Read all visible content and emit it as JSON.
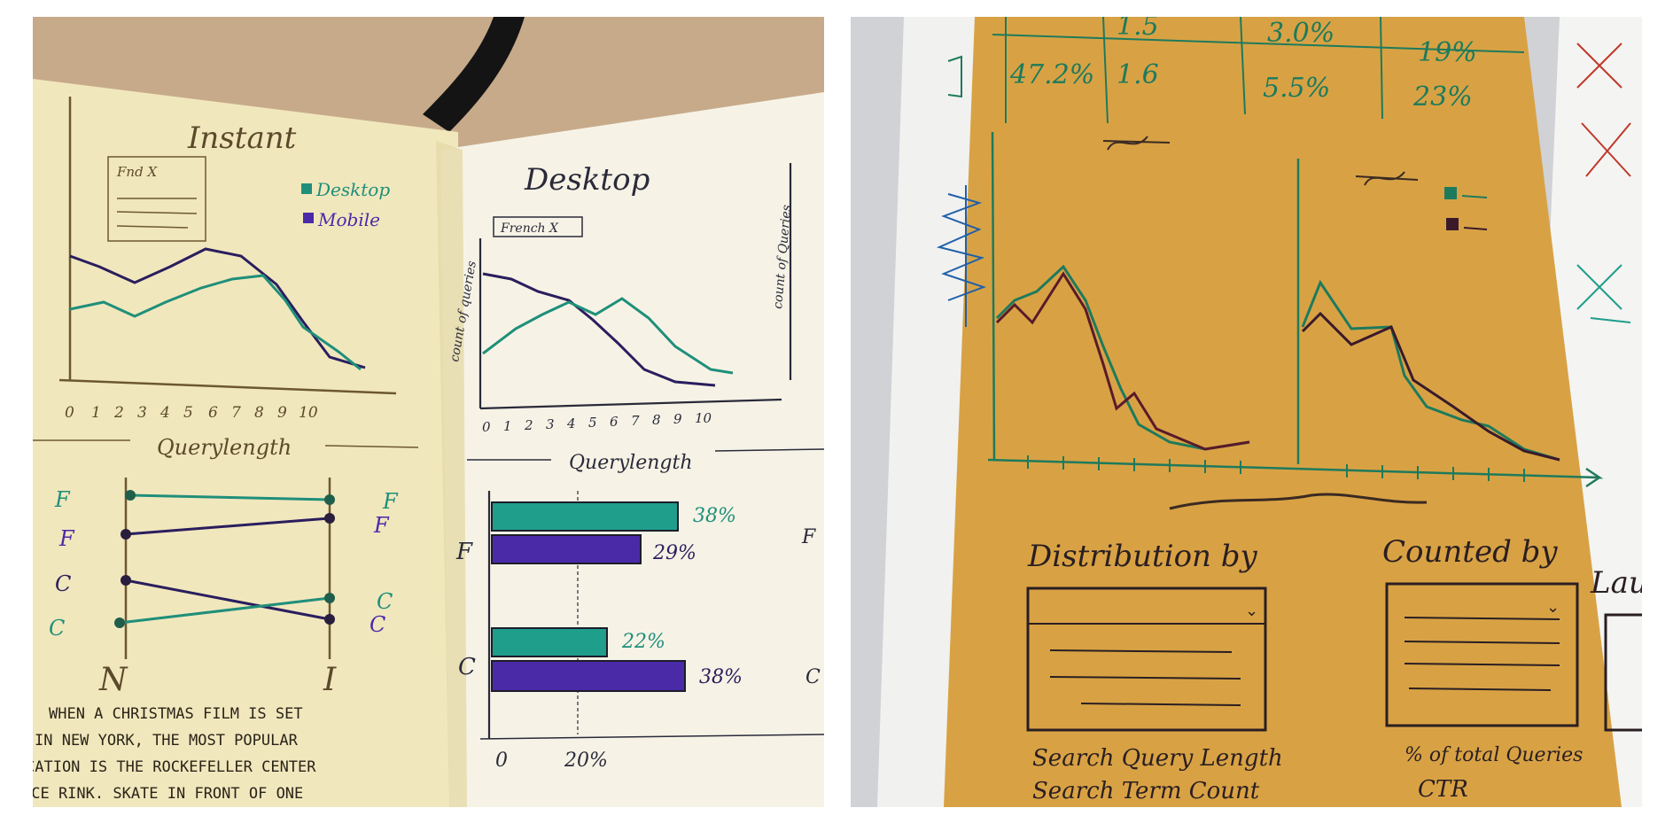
{
  "left_photo": {
    "left_page": {
      "title": "Instant",
      "filter_chip": "Fnd X",
      "legend": [
        {
          "label": "Desktop",
          "color": "#1f8f7a"
        },
        {
          "label": "Mobile",
          "color": "#4b2aa8"
        }
      ],
      "x_ticks": [
        "0",
        "1",
        "2",
        "3",
        "4",
        "5",
        "6",
        "7",
        "8",
        "9",
        "10"
      ],
      "x_axis_label": "Querylength",
      "slope_labels_left": [
        "F",
        "F",
        "C",
        "C"
      ],
      "slope_labels_right": [
        "F",
        "F",
        "C",
        "C"
      ],
      "slope_bottom_left": "N",
      "slope_bottom_right": "I",
      "caption_lines": [
        "WHEN A CHRISTMAS FILM IS SET",
        "IN NEW YORK, THE MOST POPULAR",
        "CATION IS THE ROCKEFELLER CENTER",
        "ICE RINK. SKATE IN FRONT OF ONE"
      ]
    },
    "right_page": {
      "title": "Desktop",
      "filter_chip": "French X",
      "y_axis_label": "count of queries",
      "y_axis_label_2": "count of Queries",
      "x_ticks": [
        "0",
        "1",
        "2",
        "3",
        "4",
        "5",
        "6",
        "7",
        "8",
        "9",
        "10"
      ],
      "x_axis_label": "Querylength",
      "bar_groups": [
        {
          "label": "F",
          "bars": [
            {
              "value": "38%",
              "color": "#1f9e8c"
            },
            {
              "value": "29%",
              "color": "#4b2aa8"
            }
          ]
        },
        {
          "label": "C",
          "bars": [
            {
              "value": "22%",
              "color": "#1f9e8c"
            },
            {
              "value": "38%",
              "color": "#4b2aa8"
            }
          ]
        }
      ],
      "bar_axis_ticks": [
        "0",
        "20%"
      ],
      "edge_labels": [
        "F",
        "C"
      ]
    }
  },
  "right_photo": {
    "table_rows": [
      [
        "47.2%",
        "1.6",
        "5.5%",
        "23%"
      ]
    ],
    "table_partial_row": [
      "1.5",
      "3.0%",
      "19%"
    ],
    "dropdowns": [
      {
        "label": "Distribution by",
        "option": "Search Query Length",
        "option_2": "Search Term Count"
      },
      {
        "label": "Counted by",
        "option": "% of total Queries",
        "option_2": "CTR"
      },
      {
        "label": "Lau",
        "option": "",
        "option_2": ""
      }
    ],
    "colors": {
      "orange_paper": "#d8a244",
      "ink_green": "#1e7a5c",
      "ink_dark": "#2a1e22"
    }
  }
}
